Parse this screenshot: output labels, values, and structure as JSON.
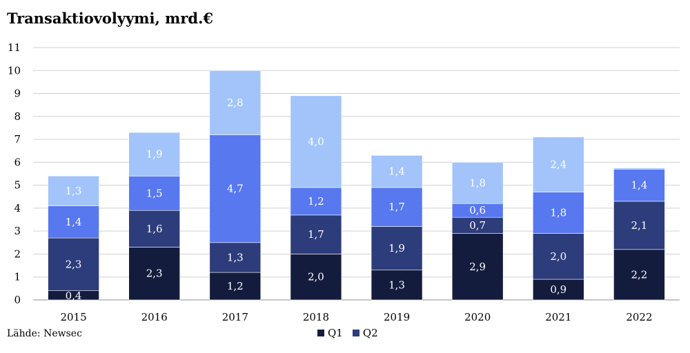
{
  "chart_data": {
    "type": "bar",
    "stacked": true,
    "title": "Transaktiovolyymi, mrd.€",
    "source": "Lähde: Newsec",
    "categories": [
      "2015",
      "2016",
      "2017",
      "2018",
      "2019",
      "2020",
      "2021",
      "2022"
    ],
    "ylim": [
      0,
      11
    ],
    "yticks": [
      "0",
      "1",
      "2",
      "3",
      "4",
      "5",
      "6",
      "7",
      "8",
      "9",
      "10",
      "11"
    ],
    "grid": true,
    "legend_position": "bottom",
    "series": [
      {
        "name": "Q1",
        "color": "#141c3e",
        "values": [
          0.4,
          2.3,
          1.2,
          2.0,
          1.3,
          2.9,
          0.9,
          2.2
        ],
        "labels": [
          "0,4",
          "2,3",
          "1,2",
          "2,0",
          "1,3",
          "2,9",
          "0,9",
          "2,2"
        ]
      },
      {
        "name": "Q2",
        "color": "#2d3c7a",
        "values": [
          2.3,
          1.6,
          1.3,
          1.7,
          1.9,
          0.7,
          2.0,
          2.1
        ],
        "labels": [
          "2,3",
          "1,6",
          "1,3",
          "1,7",
          "1,9",
          "0,7",
          "2,0",
          "2,1"
        ]
      },
      {
        "color": "#5878f0",
        "values": [
          1.4,
          1.5,
          4.7,
          1.2,
          1.7,
          0.6,
          1.8,
          1.4
        ],
        "labels": [
          "1,4",
          "1,5",
          "4,7",
          "1,2",
          "1,7",
          "0,6",
          "1,8",
          "1,4"
        ]
      },
      {
        "color": "#a2c4fb",
        "values": [
          1.3,
          1.9,
          2.8,
          4.0,
          1.4,
          1.8,
          2.4,
          0.05
        ],
        "labels": [
          "1,3",
          "1,9",
          "2,8",
          "4,0",
          "1,4",
          "1,8",
          "2,4",
          ""
        ]
      }
    ]
  }
}
